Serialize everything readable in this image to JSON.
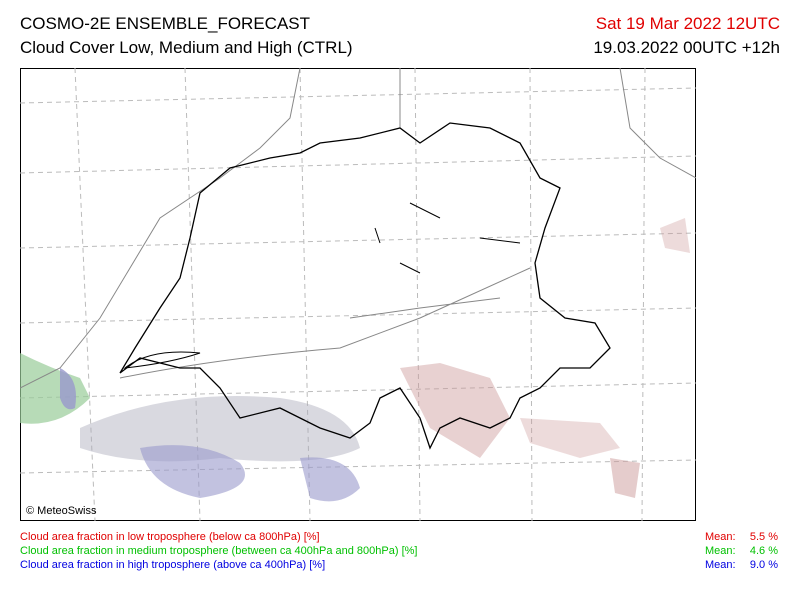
{
  "header": {
    "title": "COSMO-2E ENSEMBLE_FORECAST",
    "subtitle": "Cloud Cover Low, Medium and High (CTRL)",
    "valid_time": "Sat 19 Mar 2022 12UTC",
    "run_time": "19.03.2022 00UTC +12h"
  },
  "map": {
    "copyright": "© MeteoSwiss"
  },
  "legend": {
    "mean_label": "Mean:",
    "items": [
      {
        "text": "Cloud area fraction in low troposphere (below ca 800hPa) [%]",
        "mean": "5.5 %",
        "color": "#e00000"
      },
      {
        "text": "Cloud area fraction in medium troposphere (between ca 400hPa and 800hPa) [%]",
        "mean": "4.6 %",
        "color": "#00c000"
      },
      {
        "text": "Cloud area fraction in high troposphere (above ca 400hPa) [%]",
        "mean": "9.0 %",
        "color": "#0000e0"
      }
    ]
  }
}
